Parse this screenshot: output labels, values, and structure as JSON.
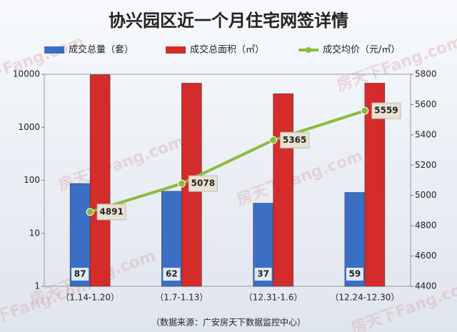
{
  "chart_data": {
    "type": "bar",
    "title": "协兴园区近一个月住宅网签详情",
    "categories": [
      "（1.14-1.20）",
      "（1.7-1.13）",
      "（12.31-1.6）",
      "（12.24-12.30）"
    ],
    "series": [
      {
        "name": "成交总量（套）",
        "color": "#3a6fc4",
        "values": [
          87,
          62,
          37,
          59
        ]
      },
      {
        "name": "成交总面积（㎡）",
        "color": "#d42b2b",
        "values": [
          9800,
          6800,
          4300,
          6800
        ]
      },
      {
        "name": "成交均价（元/㎡）",
        "color": "#8cbb3c",
        "type": "line",
        "axis": "y2",
        "values": [
          4891,
          5078,
          5365,
          5559
        ]
      }
    ],
    "log_y": true,
    "ylim": [
      1,
      10000
    ],
    "yticks": [
      1,
      10,
      100,
      1000,
      10000
    ],
    "y2lim": [
      4400,
      5800
    ],
    "y2ticks": [
      4400,
      4600,
      4800,
      5000,
      5200,
      5400,
      5600,
      5800
    ],
    "source": "（数据来源：广安房天下数据监控中心）",
    "watermark": "房天下Fang.com"
  }
}
